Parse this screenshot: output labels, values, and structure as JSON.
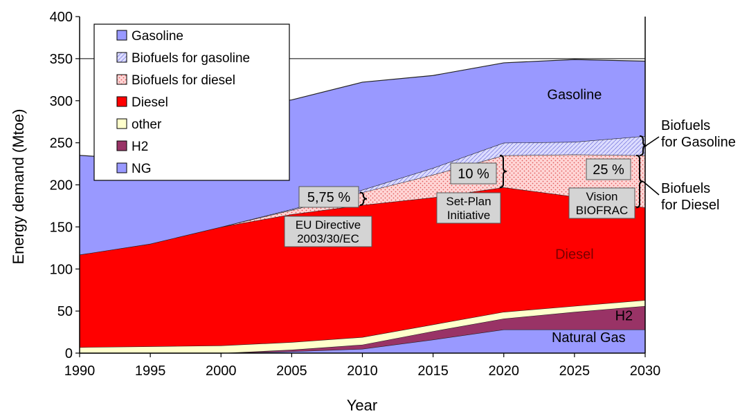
{
  "chart_data": {
    "type": "area",
    "stacked": true,
    "title": "",
    "xlabel": "Year",
    "ylabel": "Energy demand (Mtoe)",
    "xlim": [
      1990,
      2030
    ],
    "ylim": [
      0,
      400
    ],
    "x_ticks": [
      1990,
      1995,
      2000,
      2005,
      2010,
      2015,
      2020,
      2025,
      2030
    ],
    "y_ticks": [
      0,
      50,
      100,
      150,
      200,
      250,
      300,
      350,
      400
    ],
    "x": [
      1990,
      1995,
      2000,
      2005,
      2010,
      2015,
      2020,
      2025,
      2030
    ],
    "series": [
      {
        "name": "NG",
        "color": "#9999ff",
        "values": [
          0,
          0,
          0,
          2,
          5,
          16,
          28,
          28,
          28
        ]
      },
      {
        "name": "H2",
        "color": "#993366",
        "values": [
          0,
          0,
          0,
          2,
          5,
          10,
          13,
          21,
          28
        ]
      },
      {
        "name": "other",
        "color": "#ffffcc",
        "values": [
          7,
          8,
          9,
          9,
          9,
          8,
          8,
          7,
          7
        ]
      },
      {
        "name": "Diesel",
        "color": "#ff0000",
        "values": [
          110,
          122,
          141,
          152,
          157,
          151,
          148,
          130,
          110
        ]
      },
      {
        "name": "Biofuels for diesel",
        "color": "#ffcccc",
        "values": [
          0,
          0,
          0,
          5,
          15,
          27,
          38,
          50,
          62
        ]
      },
      {
        "name": "Biofuels for gasoline",
        "color": "#ccccff",
        "values": [
          0,
          0,
          0,
          1,
          3,
          8,
          15,
          15,
          23
        ]
      },
      {
        "name": "Gasoline",
        "color": "#9999ff",
        "values": [
          118,
          100,
          140,
          130,
          128,
          110,
          95,
          98,
          89
        ]
      }
    ],
    "legend": {
      "placement": "top-left",
      "entries": [
        {
          "label": "Gasoline",
          "color": "#9999ff"
        },
        {
          "label": "Biofuels for gasoline",
          "color": "#ccccff"
        },
        {
          "label": "Biofuels for diesel",
          "color": "#ffcccc"
        },
        {
          "label": "Diesel",
          "color": "#ff0000"
        },
        {
          "label": "other",
          "color": "#ffffcc"
        },
        {
          "label": "H2",
          "color": "#993366"
        },
        {
          "label": "NG",
          "color": "#9999ff"
        }
      ]
    },
    "area_labels": [
      {
        "text": "Gasoline",
        "x": 2025,
        "y": 302
      },
      {
        "text": "Diesel",
        "x": 2025,
        "y": 112
      },
      {
        "text": "H2",
        "x": 2028.5,
        "y": 39
      },
      {
        "text": "Natural Gas",
        "x": 2026,
        "y": 13
      }
    ],
    "callouts": [
      {
        "value": "5,75 %",
        "label_lines": [
          "EU Directive",
          "2003/30/EC"
        ],
        "x": 2010
      },
      {
        "value": "10 %",
        "label_lines": [
          "Set-Plan",
          "Initiative"
        ],
        "x": 2020
      },
      {
        "value": "25 %",
        "label_lines": [
          "Vision",
          "BIOFRAC"
        ],
        "x": 2030
      }
    ],
    "side_labels": [
      {
        "lines": [
          "Biofuels",
          "for Gasoline"
        ]
      },
      {
        "lines": [
          "Biofuels",
          "for Diesel"
        ]
      }
    ]
  }
}
